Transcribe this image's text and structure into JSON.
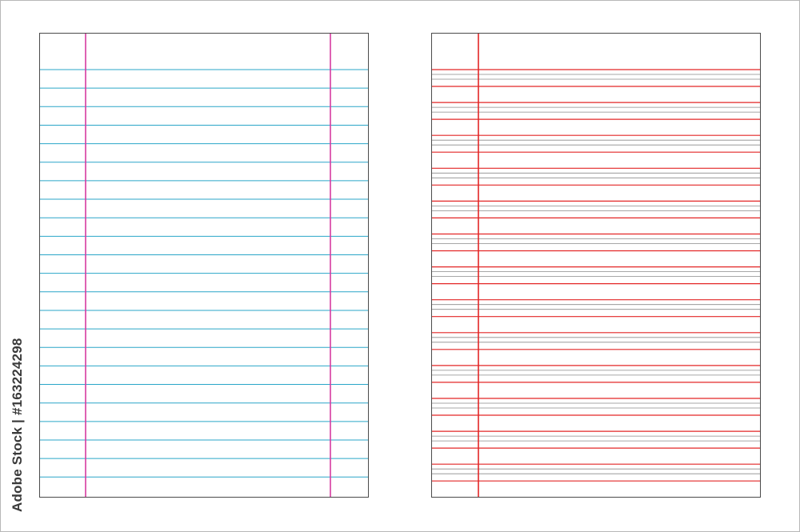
{
  "watermark": {
    "brand": "Adobe Stock",
    "separator": "|",
    "image_number": "#163224298"
  },
  "sheets": [
    {
      "id": "left",
      "style": "wide-ruled",
      "rule_color": "#2aa6c8",
      "margin_color": "#d63aa0",
      "border_color": "#4a4a4a",
      "rule_count": 23,
      "margin_lines": [
        "left",
        "right"
      ]
    },
    {
      "id": "right",
      "style": "four-line-handwriting",
      "rule_color": "#e32626",
      "guide_color": "#8a8a8a",
      "margin_color": "#e32626",
      "border_color": "#4a4a4a",
      "group_count": 13,
      "margin_lines": [
        "left"
      ]
    }
  ]
}
